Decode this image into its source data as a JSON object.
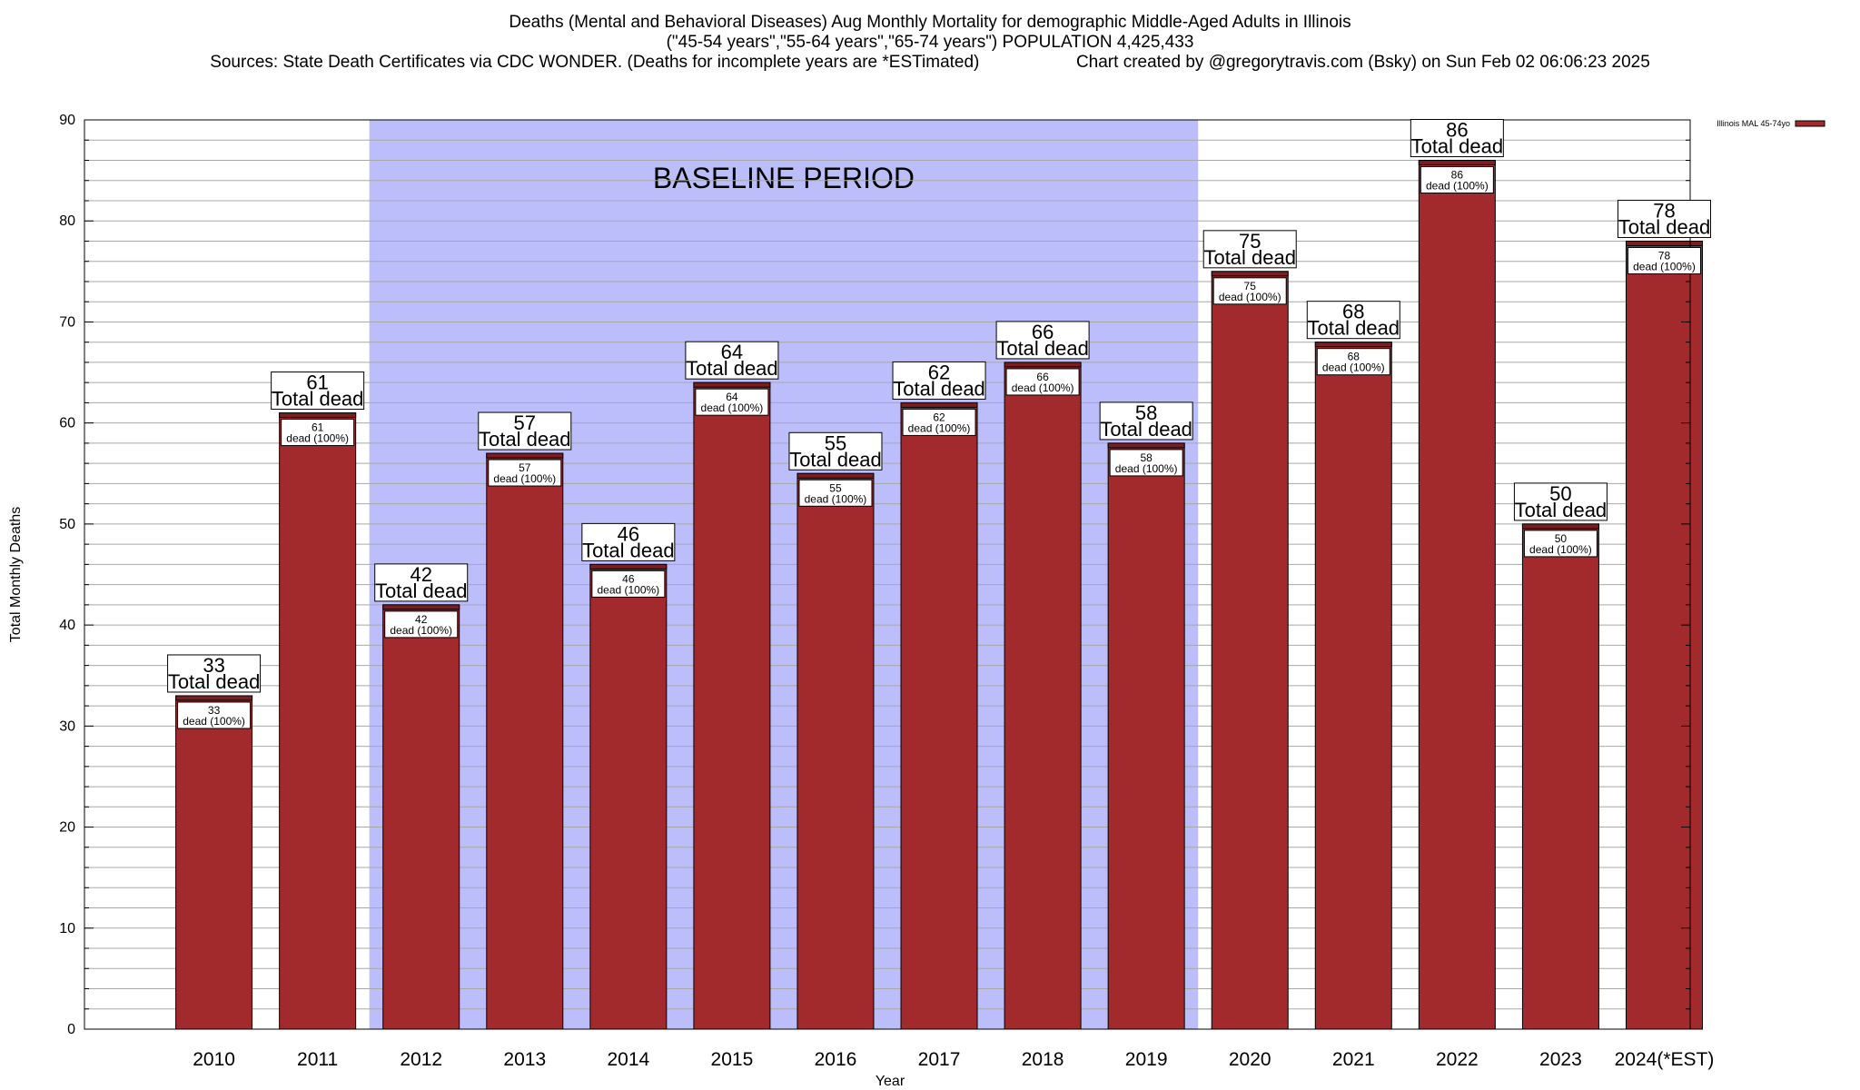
{
  "header": {
    "line1": "Deaths (Mental and Behavioral Diseases) Aug Monthly Mortality for demographic Middle-Aged Adults in Illinois",
    "line2": "(\"45-54 years\",\"55-64 years\",\"65-74 years\") POPULATION 4,425,433",
    "line3_left": "Sources: State Death Certificates via CDC WONDER. (Deaths for incomplete years are *ESTimated)",
    "line3_right": "Chart created by @gregorytravis.com (Bsky) on Sun Feb 02 06:06:23 2025"
  },
  "chart_data": {
    "type": "bar",
    "categories": [
      "2010",
      "2011",
      "2012",
      "2013",
      "2014",
      "2015",
      "2016",
      "2017",
      "2018",
      "2019",
      "2020",
      "2021",
      "2022",
      "2023",
      "2024(*EST)"
    ],
    "series": [
      {
        "name": "Illinois MAL 45-74yo",
        "values": [
          33,
          61,
          42,
          57,
          46,
          64,
          55,
          62,
          66,
          58,
          75,
          68,
          86,
          50,
          78
        ]
      }
    ],
    "xlabel": "Year",
    "ylabel": "Total Monthly Deaths",
    "ylim": [
      0,
      90
    ],
    "yticks": [
      0,
      10,
      20,
      30,
      40,
      50,
      60,
      70,
      80,
      90
    ],
    "grid": true,
    "legend_position": "top-right",
    "top_label_suffix": "Total dead",
    "inner_label_suffix": "dead (100%)",
    "annotation": {
      "text": "BASELINE PERIOD",
      "x_range": [
        "2012",
        "2019"
      ]
    },
    "colors": {
      "bar": "#a32a2c",
      "bar_top": "#7a1f21",
      "baseline_band": "#bcbdfb",
      "grid": "#a8a8a8"
    }
  }
}
